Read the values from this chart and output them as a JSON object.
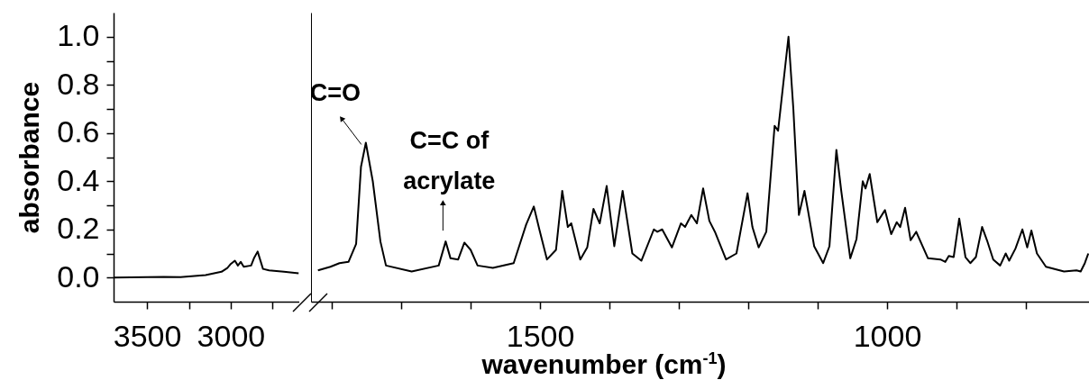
{
  "chart_data": [
    {
      "type": "line",
      "color": "#000000",
      "ylabel": "absorbance",
      "x": [
        3700,
        3400,
        3300,
        3150,
        3055,
        3020,
        3002,
        2975,
        2957,
        2940,
        2922,
        2878,
        2861,
        2839,
        2807,
        2771,
        2682,
        2594
      ],
      "values": [
        0.0,
        0.003,
        0.002,
        0.01,
        0.024,
        0.04,
        0.055,
        0.07,
        0.05,
        0.065,
        0.045,
        0.05,
        0.08,
        0.108,
        0.036,
        0.03,
        0.024,
        0.018
      ],
      "xlim": [
        3700,
        2590
      ],
      "xticks": [
        3500,
        {
          "value": 3250,
          "label": null
        },
        3000,
        {
          "value": 2750,
          "label": null
        }
      ],
      "ylim": [
        -0.1,
        1.1
      ],
      "yticks": [
        {
          "value": 0,
          "label": "0.0"
        },
        {
          "value": 0.1,
          "label": null
        },
        {
          "value": 0.2,
          "label": "0.2"
        },
        {
          "value": 0.3,
          "label": null
        },
        {
          "value": 0.4,
          "label": "0.4"
        },
        {
          "value": 0.5,
          "label": null
        },
        {
          "value": 0.6,
          "label": "0.6"
        },
        {
          "value": 0.7,
          "label": null
        },
        {
          "value": 0.8,
          "label": "0.8"
        },
        {
          "value": 0.9,
          "label": null
        },
        {
          "value": 1,
          "label": "1.0"
        }
      ],
      "grid": false
    },
    {
      "type": "line",
      "color": "#000000",
      "xlabel": "wavenumber (cm$^{-1}$)",
      "tick_labels": "x",
      "x": [
        1820,
        1802,
        1789,
        1776,
        1765,
        1758,
        1751,
        1741,
        1730,
        1722,
        1685,
        1646,
        1636,
        1629,
        1618,
        1609,
        1600,
        1590,
        1568,
        1538,
        1520,
        1509,
        1501,
        1490,
        1477,
        1468,
        1460,
        1455,
        1442,
        1432,
        1423,
        1414,
        1404,
        1393,
        1381,
        1367,
        1354,
        1336,
        1331,
        1324,
        1310,
        1297,
        1291,
        1282,
        1274,
        1265,
        1256,
        1248,
        1232,
        1217,
        1201,
        1194,
        1185,
        1174,
        1162,
        1157,
        1142,
        1135,
        1127,
        1119,
        1114,
        1105,
        1092,
        1083,
        1073,
        1066,
        1053,
        1044,
        1035,
        1031,
        1025,
        1014,
        1003,
        994,
        986,
        981,
        974,
        966,
        958,
        941,
        923,
        916,
        911,
        904,
        896,
        887,
        880,
        872,
        863,
        856,
        847,
        837,
        829,
        824,
        815,
        805,
        798,
        792,
        784,
        771,
        745,
        727,
        721,
        715,
        710
      ],
      "values": [
        0.03,
        0.045,
        0.06,
        0.065,
        0.14,
        0.46,
        0.56,
        0.4,
        0.15,
        0.05,
        0.025,
        0.05,
        0.15,
        0.08,
        0.075,
        0.145,
        0.115,
        0.05,
        0.04,
        0.06,
        0.22,
        0.295,
        0.2,
        0.075,
        0.115,
        0.36,
        0.21,
        0.225,
        0.075,
        0.125,
        0.285,
        0.225,
        0.38,
        0.13,
        0.36,
        0.1,
        0.07,
        0.2,
        0.19,
        0.2,
        0.125,
        0.225,
        0.21,
        0.26,
        0.225,
        0.37,
        0.235,
        0.19,
        0.075,
        0.1,
        0.35,
        0.21,
        0.125,
        0.19,
        0.63,
        0.61,
        1.0,
        0.7,
        0.26,
        0.36,
        0.28,
        0.13,
        0.06,
        0.13,
        0.53,
        0.36,
        0.08,
        0.16,
        0.4,
        0.37,
        0.43,
        0.23,
        0.28,
        0.18,
        0.23,
        0.21,
        0.29,
        0.155,
        0.19,
        0.08,
        0.075,
        0.065,
        0.09,
        0.085,
        0.245,
        0.085,
        0.06,
        0.085,
        0.21,
        0.155,
        0.075,
        0.05,
        0.1,
        0.07,
        0.12,
        0.2,
        0.125,
        0.195,
        0.1,
        0.045,
        0.025,
        0.03,
        0.025,
        0.06,
        0.1
      ],
      "xlim": [
        1830,
        709
      ],
      "xticks": [
        {
          "value": 1800,
          "label": null
        },
        {
          "value": 1700,
          "label": null
        },
        {
          "value": 1600,
          "label": null
        },
        1500,
        {
          "value": 1400,
          "label": null
        },
        {
          "value": 1300,
          "label": null
        },
        {
          "value": 1200,
          "label": null
        },
        {
          "value": 1100,
          "label": null
        },
        1000,
        {
          "value": 900,
          "label": null
        },
        {
          "value": 800,
          "label": null
        }
      ],
      "ylim": [
        -0.1,
        1.1
      ],
      "annotations": [
        {
          "text": "C=O",
          "x": 1751,
          "y": 0.56
        },
        {
          "text": "C=C of acrylate",
          "x": 1636,
          "y": 0.15
        }
      ],
      "grid": false
    }
  ]
}
